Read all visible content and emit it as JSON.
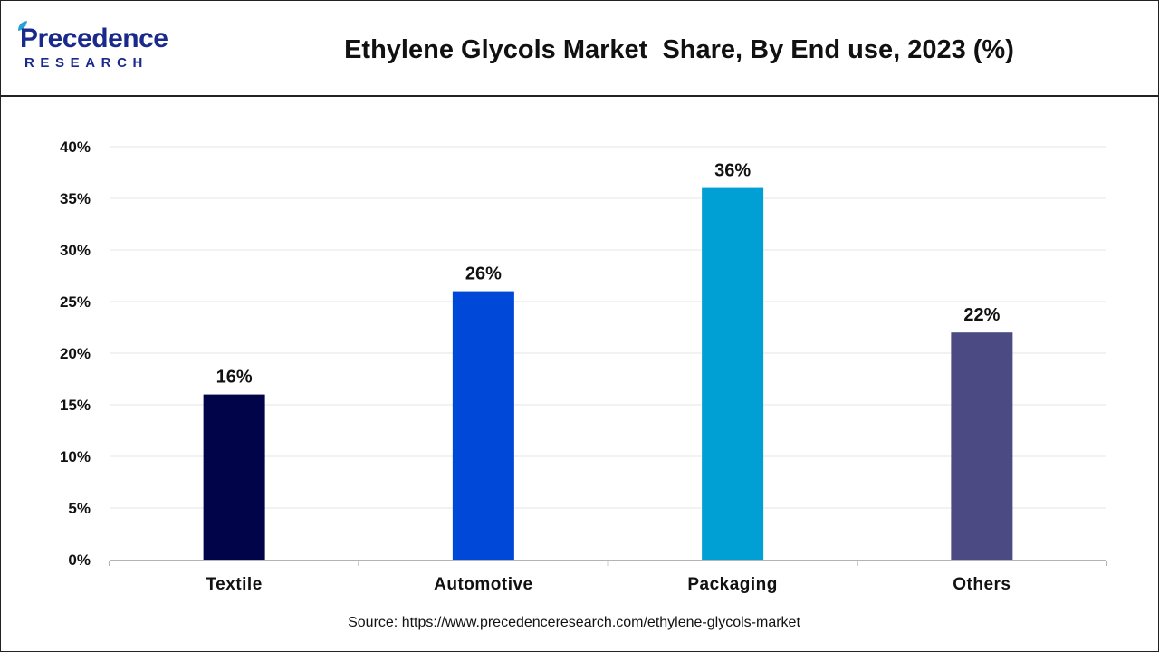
{
  "header": {
    "logo_top": "Precedence",
    "logo_bottom": "RESEARCH",
    "title": "Ethylene Glycols Market  Share, By End use, 2023 (%)"
  },
  "footer": {
    "source": "Source: https://www.precedenceresearch.com/ethylene-glycols-market"
  },
  "colors": {
    "logo": "#1a2a8c",
    "grid": "#e4e4e4",
    "axis": "#9a9a9a"
  },
  "chart_data": {
    "type": "bar",
    "title": "Ethylene Glycols Market  Share, By End use, 2023 (%)",
    "xlabel": "",
    "ylabel": "",
    "categories": [
      "Textile",
      "Automotive",
      "Packaging",
      "Others"
    ],
    "values": [
      16,
      26,
      36,
      22
    ],
    "data_labels": [
      "16%",
      "26%",
      "36%",
      "22%"
    ],
    "bar_colors": [
      "#020449",
      "#0048d8",
      "#009fd4",
      "#4b4a82"
    ],
    "ylim": [
      0,
      40
    ],
    "yticks": [
      0,
      5,
      10,
      15,
      20,
      25,
      30,
      35,
      40
    ],
    "ytick_labels": [
      "0%",
      "5%",
      "10%",
      "15%",
      "20%",
      "25%",
      "30%",
      "35%",
      "40%"
    ],
    "grid": true,
    "legend": "none"
  }
}
